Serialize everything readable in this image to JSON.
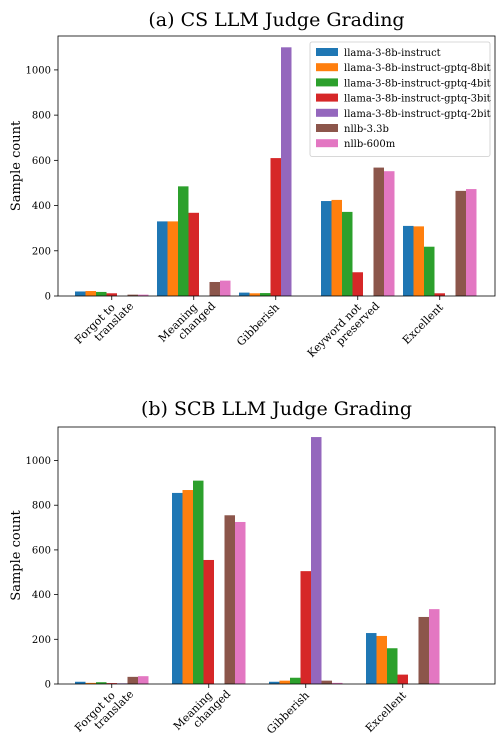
{
  "chart_data": [
    {
      "type": "bar",
      "title": "(a) CS LLM Judge Grading",
      "xlabel": "",
      "ylabel": "Sample count",
      "ylim": [
        0,
        1150
      ],
      "yticks": [
        0,
        200,
        400,
        600,
        800,
        1000
      ],
      "categories": [
        [
          "Forgot to",
          "translate"
        ],
        [
          "Meaning",
          "changed"
        ],
        [
          "Gibberish"
        ],
        [
          "Keyword not",
          "preserved"
        ],
        [
          "Excellent"
        ]
      ],
      "legend_position": "top-right",
      "series": [
        {
          "name": "llama-3-8b-instruct",
          "color": "#1f77b4",
          "values": [
            20,
            330,
            15,
            420,
            310
          ]
        },
        {
          "name": "llama-3-8b-instruct-gptq-8bit",
          "color": "#ff7f0e",
          "values": [
            22,
            330,
            12,
            425,
            308
          ]
        },
        {
          "name": "llama-3-8b-instruct-gptq-4bit",
          "color": "#2ca02c",
          "values": [
            18,
            485,
            13,
            372,
            218
          ]
        },
        {
          "name": "llama-3-8b-instruct-gptq-3bit",
          "color": "#d62728",
          "values": [
            12,
            368,
            610,
            105,
            12
          ]
        },
        {
          "name": "llama-3-8b-instruct-gptq-2bit",
          "color": "#9467bd",
          "values": [
            0,
            0,
            1100,
            0,
            0
          ]
        },
        {
          "name": "nllb-3.3b",
          "color": "#8c564b",
          "values": [
            6,
            62,
            0,
            568,
            465
          ]
        },
        {
          "name": "nllb-600m",
          "color": "#e377c2",
          "values": [
            6,
            68,
            0,
            552,
            473
          ]
        }
      ]
    },
    {
      "type": "bar",
      "title": "(b) SCB LLM Judge Grading",
      "xlabel": "",
      "ylabel": "Sample count",
      "ylim": [
        0,
        1150
      ],
      "yticks": [
        0,
        200,
        400,
        600,
        800,
        1000
      ],
      "categories": [
        [
          "Forgot to",
          "translate"
        ],
        [
          "Meaning",
          "changed"
        ],
        [
          "Gibberish"
        ],
        [
          "Excellent"
        ]
      ],
      "series": [
        {
          "name": "llama-3-8b-instruct",
          "color": "#1f77b4",
          "values": [
            10,
            855,
            10,
            228
          ]
        },
        {
          "name": "llama-3-8b-instruct-gptq-8bit",
          "color": "#ff7f0e",
          "values": [
            5,
            868,
            15,
            215
          ]
        },
        {
          "name": "llama-3-8b-instruct-gptq-4bit",
          "color": "#2ca02c",
          "values": [
            8,
            910,
            28,
            160
          ]
        },
        {
          "name": "llama-3-8b-instruct-gptq-3bit",
          "color": "#d62728",
          "values": [
            4,
            555,
            505,
            42
          ]
        },
        {
          "name": "llama-3-8b-instruct-gptq-2bit",
          "color": "#9467bd",
          "values": [
            3,
            0,
            1105,
            0
          ]
        },
        {
          "name": "nllb-3.3b",
          "color": "#8c564b",
          "values": [
            32,
            755,
            15,
            300
          ]
        },
        {
          "name": "nllb-600m",
          "color": "#e377c2",
          "values": [
            35,
            725,
            5,
            335
          ]
        }
      ]
    }
  ]
}
